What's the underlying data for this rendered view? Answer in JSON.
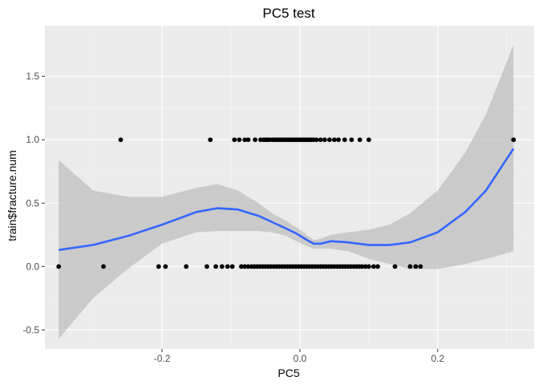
{
  "chart_data": {
    "type": "scatter",
    "title": "PC5  test",
    "xlabel": "PC5",
    "ylabel": "train$fracture.num",
    "xlim": [
      -0.37,
      0.34
    ],
    "ylim": [
      -0.65,
      1.9
    ],
    "x_ticks": [
      -0.2,
      0.0,
      0.2
    ],
    "x_tick_labels": [
      "-0.2",
      "0.0",
      "0.2"
    ],
    "y_ticks": [
      -0.5,
      0.0,
      0.5,
      1.0,
      1.5
    ],
    "y_tick_labels": [
      "-0.5",
      "0.0",
      "0.5",
      "1.0",
      "1.5"
    ],
    "grid": true,
    "colors": {
      "panel": "#ebebeb",
      "grid_major": "#ffffff",
      "grid_minor": "#f5f5f5",
      "points": "#000000",
      "smooth": "#3366ff",
      "ribbon": "#bfbfbf"
    },
    "points_y1": [
      -0.26,
      -0.13,
      -0.095,
      -0.088,
      -0.08,
      -0.075,
      -0.065,
      -0.057,
      -0.053,
      -0.05,
      -0.047,
      -0.044,
      -0.04,
      -0.037,
      -0.034,
      -0.031,
      -0.028,
      -0.025,
      -0.022,
      -0.019,
      -0.016,
      -0.013,
      -0.01,
      -0.007,
      -0.004,
      -0.001,
      0.002,
      0.005,
      0.008,
      0.011,
      0.014,
      0.017,
      0.02,
      0.024,
      0.03,
      0.036,
      0.043,
      0.05,
      0.056,
      0.065,
      0.075,
      0.087,
      0.1,
      0.31
    ],
    "points_y0": [
      -0.35,
      -0.285,
      -0.205,
      -0.195,
      -0.165,
      -0.135,
      -0.122,
      -0.113,
      -0.105,
      -0.098,
      -0.085,
      -0.08,
      -0.075,
      -0.07,
      -0.066,
      -0.062,
      -0.058,
      -0.054,
      -0.05,
      -0.046,
      -0.042,
      -0.038,
      -0.034,
      -0.03,
      -0.026,
      -0.022,
      -0.018,
      -0.014,
      -0.01,
      -0.006,
      -0.002,
      0.002,
      0.006,
      0.01,
      0.014,
      0.018,
      0.022,
      0.026,
      0.03,
      0.034,
      0.038,
      0.042,
      0.046,
      0.05,
      0.054,
      0.058,
      0.062,
      0.066,
      0.07,
      0.074,
      0.078,
      0.082,
      0.086,
      0.09,
      0.095,
      0.1,
      0.107,
      0.113,
      0.138,
      0.16,
      0.168,
      0.175
    ],
    "smooth_x": [
      -0.35,
      -0.3,
      -0.25,
      -0.2,
      -0.15,
      -0.12,
      -0.09,
      -0.06,
      -0.04,
      -0.02,
      -0.005,
      0.01,
      0.02,
      0.03,
      0.045,
      0.07,
      0.1,
      0.13,
      0.16,
      0.2,
      0.24,
      0.27,
      0.31
    ],
    "smooth_y": [
      0.13,
      0.17,
      0.24,
      0.33,
      0.43,
      0.46,
      0.45,
      0.4,
      0.35,
      0.3,
      0.26,
      0.21,
      0.18,
      0.18,
      0.2,
      0.19,
      0.17,
      0.17,
      0.19,
      0.27,
      0.43,
      0.6,
      0.93
    ],
    "ribbon_upper": [
      0.84,
      0.6,
      0.55,
      0.55,
      0.62,
      0.65,
      0.6,
      0.5,
      0.42,
      0.36,
      0.31,
      0.25,
      0.21,
      0.22,
      0.25,
      0.27,
      0.29,
      0.33,
      0.42,
      0.6,
      0.9,
      1.2,
      1.75
    ],
    "ribbon_lower": [
      -0.57,
      -0.25,
      -0.02,
      0.18,
      0.27,
      0.28,
      0.28,
      0.28,
      0.27,
      0.24,
      0.2,
      0.16,
      0.14,
      0.14,
      0.14,
      0.12,
      0.06,
      0.02,
      -0.02,
      -0.02,
      0.02,
      0.06,
      0.12
    ]
  }
}
